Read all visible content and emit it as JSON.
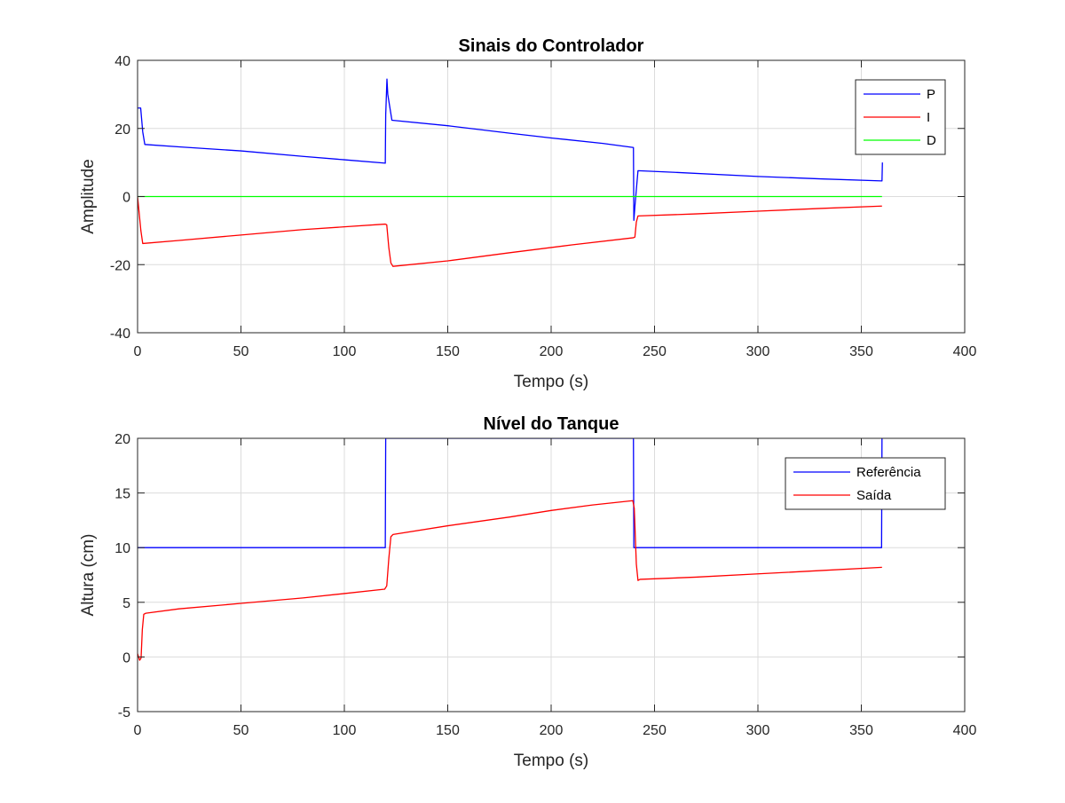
{
  "chart_data": [
    {
      "type": "line",
      "title": "Sinais do Controlador",
      "xlabel": "Tempo (s)",
      "ylabel": "Amplitude",
      "xlim": [
        0,
        400
      ],
      "ylim": [
        -40,
        40
      ],
      "xticks": [
        0,
        50,
        100,
        150,
        200,
        250,
        300,
        350,
        400
      ],
      "yticks": [
        -40,
        -20,
        0,
        20,
        40
      ],
      "grid": true,
      "legend_position": "top-right",
      "series": [
        {
          "name": "P",
          "color": "#0000ff",
          "points": [
            [
              0,
              26
            ],
            [
              1.5,
              26
            ],
            [
              2.5,
              19
            ],
            [
              3.5,
              15.3
            ],
            [
              20,
              14.6
            ],
            [
              50,
              13.4
            ],
            [
              80,
              11.8
            ],
            [
              100,
              10.8
            ],
            [
              119.8,
              9.8
            ],
            [
              120,
              24
            ],
            [
              120.6,
              34.5
            ],
            [
              121,
              30
            ],
            [
              123,
              22.4
            ],
            [
              150,
              20.8
            ],
            [
              180,
              18.6
            ],
            [
              200,
              17.2
            ],
            [
              225,
              15.6
            ],
            [
              239.8,
              14.4
            ],
            [
              240,
              -7
            ],
            [
              240.5,
              -3
            ],
            [
              241.2,
              2
            ],
            [
              242,
              7.6
            ],
            [
              260,
              7.1
            ],
            [
              300,
              5.9
            ],
            [
              330,
              5.2
            ],
            [
              359.8,
              4.6
            ],
            [
              360,
              4.6
            ],
            [
              360.2,
              10
            ]
          ]
        },
        {
          "name": "I",
          "color": "#ff0000",
          "points": [
            [
              0,
              0
            ],
            [
              0.8,
              -5
            ],
            [
              1.6,
              -10
            ],
            [
              2.5,
              -13.8
            ],
            [
              20,
              -12.9
            ],
            [
              50,
              -11.3
            ],
            [
              80,
              -9.7
            ],
            [
              100,
              -8.9
            ],
            [
              119.8,
              -8.1
            ],
            [
              120.5,
              -8.3
            ],
            [
              121.5,
              -15
            ],
            [
              122.5,
              -19.5
            ],
            [
              123.5,
              -20.5
            ],
            [
              150,
              -18.9
            ],
            [
              180,
              -16.5
            ],
            [
              210,
              -14.2
            ],
            [
              239.8,
              -12.1
            ],
            [
              240.5,
              -11.9
            ],
            [
              241.2,
              -7.5
            ],
            [
              242,
              -5.7
            ],
            [
              270,
              -5.1
            ],
            [
              300,
              -4.3
            ],
            [
              330,
              -3.5
            ],
            [
              360,
              -2.8
            ]
          ]
        },
        {
          "name": "D",
          "color": "#00ff00",
          "points": [
            [
              0,
              0
            ],
            [
              360,
              0
            ]
          ]
        }
      ]
    },
    {
      "type": "line",
      "title": "Nível do Tanque",
      "xlabel": "Tempo (s)",
      "ylabel": "Altura (cm)",
      "xlim": [
        0,
        400
      ],
      "ylim": [
        -5,
        20
      ],
      "xticks": [
        0,
        50,
        100,
        150,
        200,
        250,
        300,
        350,
        400
      ],
      "yticks": [
        -5,
        0,
        5,
        10,
        15,
        20
      ],
      "grid": true,
      "legend_position": "top-right",
      "series": [
        {
          "name": "Referência",
          "color": "#0000ff",
          "points": [
            [
              0,
              10
            ],
            [
              119.8,
              10
            ],
            [
              120,
              20
            ],
            [
              239.8,
              20
            ],
            [
              240,
              10
            ],
            [
              359.8,
              10
            ],
            [
              360,
              20
            ]
          ]
        },
        {
          "name": "Saída",
          "color": "#ff0000",
          "points": [
            [
              0,
              0.3
            ],
            [
              1,
              -0.3
            ],
            [
              1.7,
              -0.1
            ],
            [
              2.3,
              2.5
            ],
            [
              3,
              3.9
            ],
            [
              4,
              4
            ],
            [
              20,
              4.4
            ],
            [
              50,
              4.9
            ],
            [
              80,
              5.4
            ],
            [
              100,
              5.8
            ],
            [
              119.5,
              6.2
            ],
            [
              120.5,
              6.5
            ],
            [
              121.5,
              9
            ],
            [
              122.5,
              11
            ],
            [
              123.5,
              11.2
            ],
            [
              150,
              12
            ],
            [
              180,
              12.8
            ],
            [
              200,
              13.4
            ],
            [
              220,
              13.9
            ],
            [
              239.5,
              14.3
            ],
            [
              240.2,
              13.6
            ],
            [
              241.2,
              8.5
            ],
            [
              242,
              7
            ],
            [
              243,
              7.1
            ],
            [
              270,
              7.3
            ],
            [
              300,
              7.6
            ],
            [
              330,
              7.9
            ],
            [
              360,
              8.2
            ]
          ]
        }
      ]
    }
  ]
}
